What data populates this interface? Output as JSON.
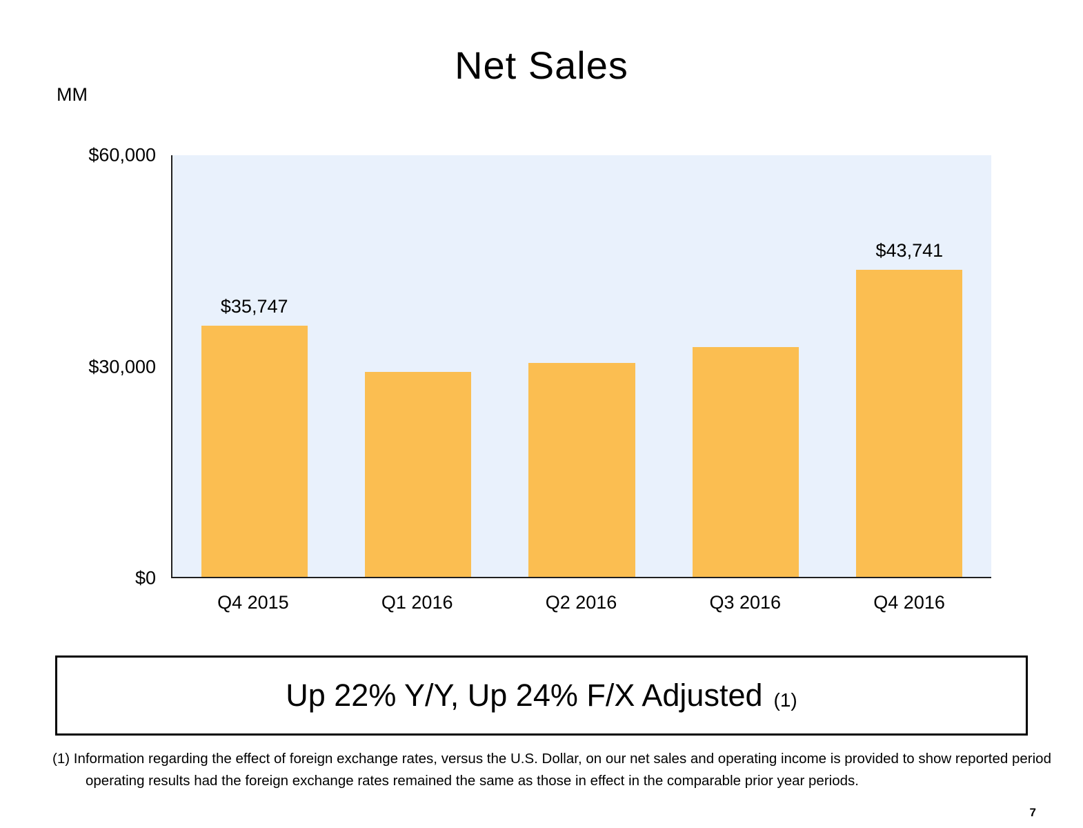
{
  "page": {
    "units_label": "MM",
    "page_number": "7",
    "callout": {
      "main_text": "Up 22% Y/Y, Up 24% F/X Adjusted",
      "footnote_ref": "(1)"
    },
    "footnote": "(1) Information regarding the effect of foreign exchange rates, versus the U.S. Dollar, on our net sales and operating income is provided to show reported period operating results had the foreign exchange rates remained the same as those in effect in the comparable prior year periods."
  },
  "chart_data": {
    "type": "bar",
    "title": "Net Sales",
    "categories": [
      "Q4 2015",
      "Q1 2016",
      "Q2 2016",
      "Q3 2016",
      "Q4 2016"
    ],
    "values": [
      35747,
      29128,
      30404,
      32714,
      43741
    ],
    "data_labels": [
      "$35,747",
      "",
      "",
      "",
      "$43,741"
    ],
    "xlabel": "",
    "ylabel": "",
    "ylim": [
      0,
      60000
    ],
    "yticks": [
      0,
      30000,
      60000
    ],
    "ytick_labels": [
      "$0",
      "$30,000",
      "$60,000"
    ],
    "grid": false,
    "legend": "none",
    "bar_color": "#FBBE51",
    "plot_background": "#E9F1FC",
    "axis_color": "#1f1f1f"
  }
}
